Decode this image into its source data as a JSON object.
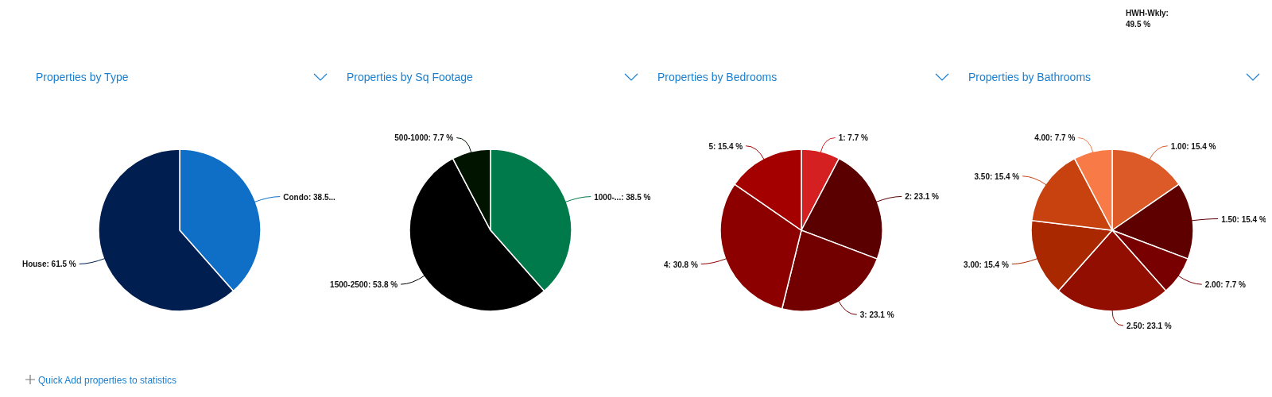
{
  "chart_data": [
    {
      "type": "pie",
      "title": "Properties by Type",
      "categories": [
        "Condo",
        "House"
      ],
      "values": [
        38.5,
        61.5
      ],
      "value_labels": [
        "38.5...",
        "61.5 %"
      ],
      "colors": [
        "#0f6fc6",
        "#001e50"
      ]
    },
    {
      "type": "pie",
      "title": "Properties by Sq Footage",
      "categories": [
        "1000-...",
        "1500-2500",
        "500-1000"
      ],
      "values": [
        38.5,
        53.8,
        7.7
      ],
      "value_labels": [
        "38.5 %",
        "53.8 %",
        "7.7 %"
      ],
      "colors": [
        "#007a4a",
        "#000000",
        "#001400"
      ]
    },
    {
      "type": "pie",
      "title": "Properties by Bedrooms",
      "categories": [
        "1",
        "2",
        "3",
        "4",
        "5"
      ],
      "values": [
        7.7,
        23.1,
        23.1,
        30.8,
        15.4
      ],
      "value_labels": [
        "7.7 %",
        "23.1 %",
        "23.1 %",
        "30.8 %",
        "15.4 %"
      ],
      "colors": [
        "#d42020",
        "#5a0000",
        "#730000",
        "#8c0000",
        "#a50000"
      ]
    },
    {
      "type": "pie",
      "title": "Properties by Bathrooms",
      "categories": [
        "1.00",
        "1.50",
        "2.00",
        "2.50",
        "3.00",
        "3.50",
        "4.00"
      ],
      "values": [
        15.4,
        15.4,
        7.7,
        23.1,
        15.4,
        15.4,
        7.7
      ],
      "value_labels": [
        "15.4 %",
        "15.4 %",
        "7.7 %",
        "23.1 %",
        "15.4 %",
        "15.4 %",
        "7.7 %"
      ],
      "colors": [
        "#dc5a28",
        "#5e0000",
        "#780000",
        "#910e00",
        "#aa2800",
        "#c8420f",
        "#f87a46"
      ]
    },
    {
      "type": "other",
      "annotations": [
        "HWH-Wkly:",
        "49.5 %",
        "Quick Add properties to statistics"
      ]
    }
  ]
}
